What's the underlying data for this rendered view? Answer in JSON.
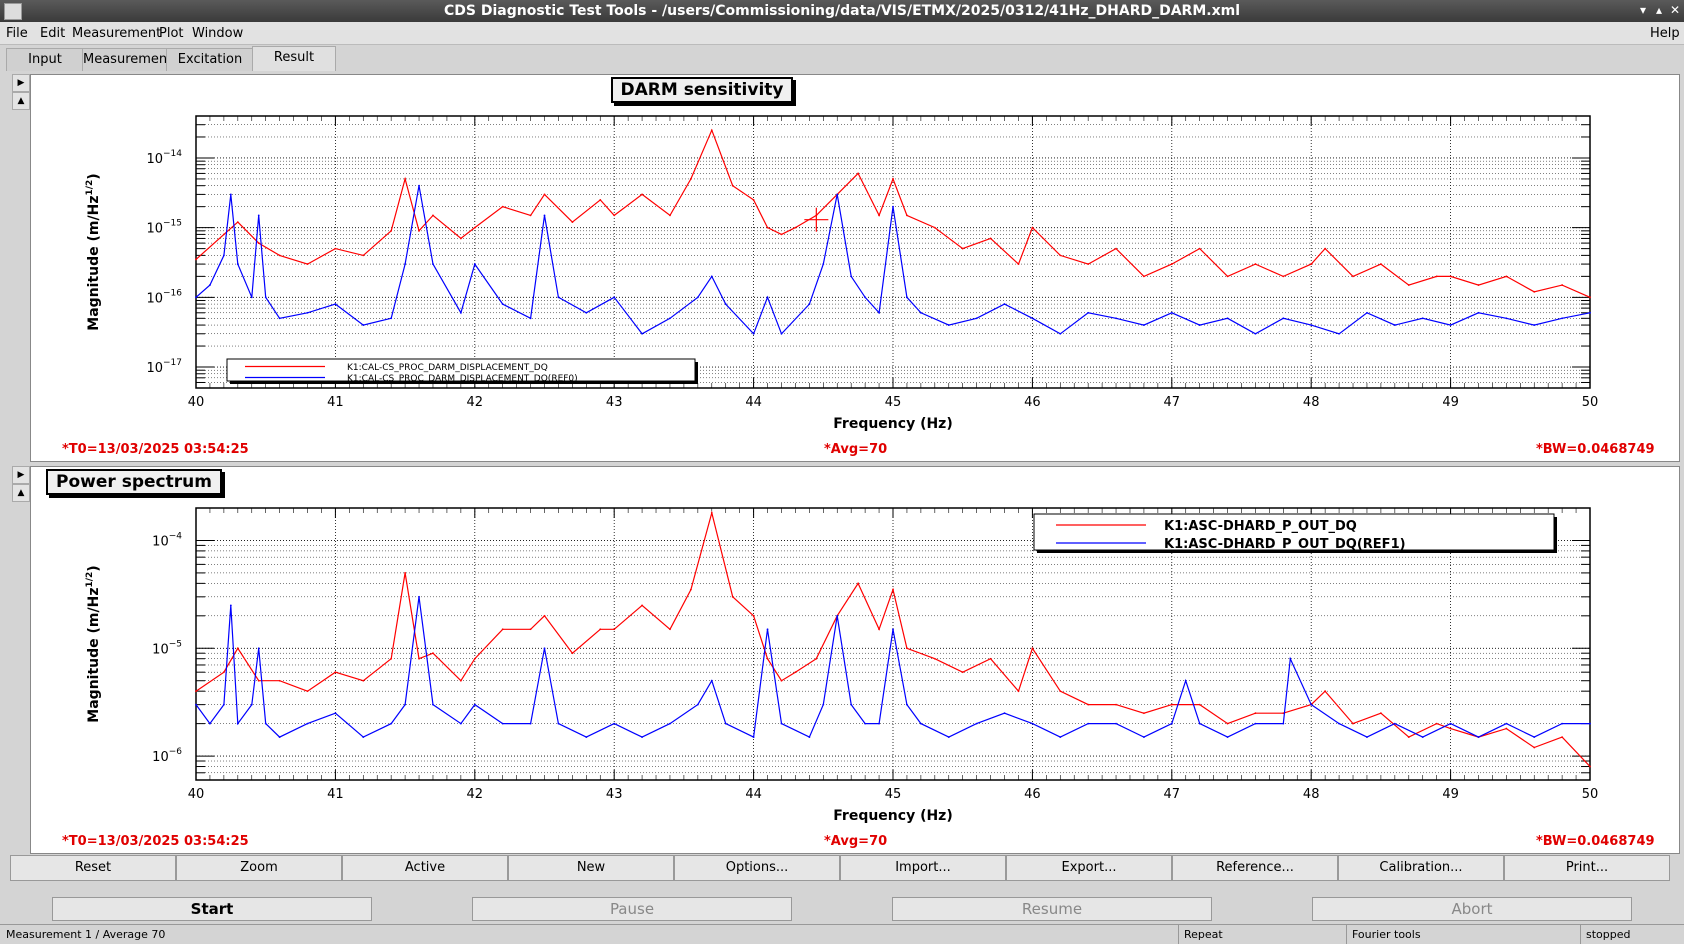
{
  "window": {
    "title": "CDS Diagnostic Test Tools - /users/Commissioning/data/VIS/ETMX/2025/0312/41Hz_DHARD_DARM.xml"
  },
  "menu": {
    "file": "File",
    "edit": "Edit",
    "measurement": "Measurement",
    "plot": "Plot",
    "window": "Window",
    "help": "Help"
  },
  "tabs": [
    "Input",
    "Measurement",
    "Excitation",
    "Result"
  ],
  "active_tab": "Result",
  "plots": [
    {
      "title": "DARM sensitivity",
      "xlabel": "Frequency (Hz)",
      "ylabel": "Magnitude (m/Hz",
      "ylabel_sup": "1/2",
      "ylabel_end": ")",
      "legend": [
        "K1:CAL-CS_PROC_DARM_DISPLACEMENT_DQ",
        "K1:CAL-CS_PROC_DARM_DISPLACEMENT_DQ(REF0)"
      ],
      "t0": "*T0=13/03/2025 03:54:25",
      "avg": "*Avg=70",
      "bw": "*BW=0.0468749"
    },
    {
      "title": "Power spectrum",
      "xlabel": "Frequency (Hz)",
      "ylabel": "Magnitude (m/Hz",
      "ylabel_sup": "1/2",
      "ylabel_end": ")",
      "legend": [
        "K1:ASC-DHARD_P_OUT_DQ",
        "K1:ASC-DHARD_P_OUT_DQ(REF1)"
      ],
      "t0": "*T0=13/03/2025 03:54:25",
      "avg": "*Avg=70",
      "bw": "*BW=0.0468749"
    }
  ],
  "chart_data": [
    {
      "type": "line",
      "title": "DARM sensitivity",
      "xlabel": "Frequency (Hz)",
      "ylabel": "Magnitude (m/Hz^1/2)",
      "xlim": [
        40,
        50
      ],
      "ylim": [
        5e-18,
        4e-14
      ],
      "yscale": "log",
      "grid": true,
      "legend_position": "bottom-left",
      "x_ticks": [
        "40",
        "41",
        "42",
        "43",
        "44",
        "45",
        "46",
        "47",
        "48",
        "49",
        "50"
      ],
      "y_ticks": [
        {
          "value": 1e-14,
          "label": "10",
          "exp": "-14"
        },
        {
          "value": 1e-15,
          "label": "10",
          "exp": "-15"
        },
        {
          "value": 1e-16,
          "label": "10",
          "exp": "-16"
        },
        {
          "value": 1e-17,
          "label": "10",
          "exp": "-17"
        }
      ],
      "series": [
        {
          "name": "K1:CAL-CS_PROC_DARM_DISPLACEMENT_DQ",
          "color": "#ff0000",
          "x": [
            40,
            40.2,
            40.3,
            40.45,
            40.6,
            40.8,
            41,
            41.2,
            41.4,
            41.5,
            41.6,
            41.7,
            41.9,
            42,
            42.2,
            42.4,
            42.5,
            42.7,
            42.9,
            43,
            43.2,
            43.4,
            43.55,
            43.7,
            43.85,
            44,
            44.1,
            44.2,
            44.3,
            44.45,
            44.6,
            44.75,
            44.9,
            45,
            45.1,
            45.3,
            45.5,
            45.7,
            45.9,
            46,
            46.2,
            46.4,
            46.6,
            46.8,
            47,
            47.2,
            47.4,
            47.6,
            47.8,
            48,
            48.1,
            48.3,
            48.5,
            48.7,
            48.9,
            49,
            49.2,
            49.4,
            49.6,
            49.8,
            50
          ],
          "y": [
            3.5e-16,
            8e-16,
            1.2e-15,
            6e-16,
            4e-16,
            3e-16,
            5e-16,
            4e-16,
            9e-16,
            5e-15,
            9e-16,
            1.5e-15,
            7e-16,
            1e-15,
            2e-15,
            1.5e-15,
            3e-15,
            1.2e-15,
            2.5e-15,
            1.5e-15,
            3e-15,
            1.5e-15,
            5e-15,
            2.5e-14,
            4e-15,
            2.5e-15,
            1e-15,
            8e-16,
            1e-15,
            1.5e-15,
            3e-15,
            6e-15,
            1.5e-15,
            5e-15,
            1.5e-15,
            1e-15,
            5e-16,
            7e-16,
            3e-16,
            1e-15,
            4e-16,
            3e-16,
            5e-16,
            2e-16,
            3e-16,
            5e-16,
            2e-16,
            3e-16,
            2e-16,
            3e-16,
            5e-16,
            2e-16,
            3e-16,
            1.5e-16,
            2e-16,
            2e-16,
            1.5e-16,
            2e-16,
            1.2e-16,
            1.5e-16,
            1e-16
          ]
        },
        {
          "name": "K1:CAL-CS_PROC_DARM_DISPLACEMENT_DQ(REF0)",
          "color": "#0000ff",
          "x": [
            40,
            40.1,
            40.2,
            40.25,
            40.3,
            40.4,
            40.45,
            40.5,
            40.6,
            40.8,
            41,
            41.2,
            41.4,
            41.5,
            41.6,
            41.7,
            41.9,
            42,
            42.2,
            42.4,
            42.5,
            42.6,
            42.8,
            43,
            43.2,
            43.4,
            43.6,
            43.7,
            43.8,
            44,
            44.1,
            44.2,
            44.4,
            44.5,
            44.6,
            44.7,
            44.8,
            44.9,
            45,
            45.1,
            45.2,
            45.4,
            45.6,
            45.8,
            46,
            46.2,
            46.4,
            46.6,
            46.8,
            47,
            47.2,
            47.4,
            47.6,
            47.8,
            48,
            48.2,
            48.4,
            48.6,
            48.8,
            49,
            49.2,
            49.4,
            49.6,
            49.8,
            50
          ],
          "y": [
            1e-16,
            1.5e-16,
            4e-16,
            3e-15,
            3e-16,
            1e-16,
            1.5e-15,
            1e-16,
            5e-17,
            6e-17,
            8e-17,
            4e-17,
            5e-17,
            3e-16,
            4e-15,
            3e-16,
            6e-17,
            3e-16,
            8e-17,
            5e-17,
            1.5e-15,
            1e-16,
            6e-17,
            1e-16,
            3e-17,
            5e-17,
            1e-16,
            2e-16,
            8e-17,
            3e-17,
            1e-16,
            3e-17,
            8e-17,
            3e-16,
            3e-15,
            2e-16,
            1e-16,
            6e-17,
            2e-15,
            1e-16,
            6e-17,
            4e-17,
            5e-17,
            8e-17,
            5e-17,
            3e-17,
            6e-17,
            5e-17,
            4e-17,
            6e-17,
            4e-17,
            5e-17,
            3e-17,
            5e-17,
            4e-17,
            3e-17,
            6e-17,
            4e-17,
            5e-17,
            4e-17,
            6e-17,
            5e-17,
            4e-17,
            5e-17,
            6e-17
          ]
        }
      ]
    },
    {
      "type": "line",
      "title": "Power spectrum",
      "xlabel": "Frequency (Hz)",
      "ylabel": "Magnitude (m/Hz^1/2)",
      "xlim": [
        40,
        50
      ],
      "ylim": [
        6e-07,
        0.0002
      ],
      "yscale": "log",
      "grid": true,
      "legend_position": "top-right",
      "x_ticks": [
        "40",
        "41",
        "42",
        "43",
        "44",
        "45",
        "46",
        "47",
        "48",
        "49",
        "50"
      ],
      "y_ticks": [
        {
          "value": 0.0001,
          "label": "10",
          "exp": "-4"
        },
        {
          "value": 1e-05,
          "label": "10",
          "exp": "-5"
        },
        {
          "value": 1e-06,
          "label": "10",
          "exp": "-6"
        }
      ],
      "series": [
        {
          "name": "K1:ASC-DHARD_P_OUT_DQ",
          "color": "#ff0000",
          "x": [
            40,
            40.2,
            40.3,
            40.45,
            40.6,
            40.8,
            41,
            41.2,
            41.4,
            41.5,
            41.6,
            41.7,
            41.9,
            42,
            42.2,
            42.4,
            42.5,
            42.7,
            42.9,
            43,
            43.2,
            43.4,
            43.55,
            43.7,
            43.85,
            44,
            44.1,
            44.2,
            44.3,
            44.45,
            44.6,
            44.75,
            44.9,
            45,
            45.1,
            45.3,
            45.5,
            45.7,
            45.9,
            46,
            46.2,
            46.4,
            46.6,
            46.8,
            47,
            47.2,
            47.4,
            47.6,
            47.8,
            48,
            48.1,
            48.3,
            48.5,
            48.7,
            48.9,
            49,
            49.2,
            49.4,
            49.6,
            49.8,
            50
          ],
          "y": [
            4e-06,
            6e-06,
            1e-05,
            5e-06,
            5e-06,
            4e-06,
            6e-06,
            5e-06,
            8e-06,
            5e-05,
            8e-06,
            9e-06,
            5e-06,
            8e-06,
            1.5e-05,
            1.5e-05,
            2e-05,
            9e-06,
            1.5e-05,
            1.5e-05,
            2.5e-05,
            1.5e-05,
            3.5e-05,
            0.00018,
            3e-05,
            2e-05,
            8e-06,
            5e-06,
            6e-06,
            8e-06,
            2e-05,
            4e-05,
            1.5e-05,
            3.5e-05,
            1e-05,
            8e-06,
            6e-06,
            8e-06,
            4e-06,
            1e-05,
            4e-06,
            3e-06,
            3e-06,
            2.5e-06,
            3e-06,
            3e-06,
            2e-06,
            2.5e-06,
            2.5e-06,
            3e-06,
            4e-06,
            2e-06,
            2.5e-06,
            1.5e-06,
            2e-06,
            1.8e-06,
            1.5e-06,
            1.8e-06,
            1.2e-06,
            1.5e-06,
            8e-07
          ]
        },
        {
          "name": "K1:ASC-DHARD_P_OUT_DQ(REF1)",
          "color": "#0000ff",
          "x": [
            40,
            40.1,
            40.2,
            40.25,
            40.3,
            40.4,
            40.45,
            40.5,
            40.6,
            40.8,
            41,
            41.2,
            41.4,
            41.5,
            41.6,
            41.7,
            41.9,
            42,
            42.2,
            42.4,
            42.5,
            42.6,
            42.8,
            43,
            43.2,
            43.4,
            43.6,
            43.7,
            43.8,
            44,
            44.1,
            44.2,
            44.4,
            44.5,
            44.6,
            44.7,
            44.8,
            44.9,
            45,
            45.1,
            45.2,
            45.4,
            45.6,
            45.8,
            46,
            46.2,
            46.4,
            46.6,
            46.8,
            47,
            47.1,
            47.2,
            47.4,
            47.6,
            47.8,
            47.85,
            48,
            48.2,
            48.4,
            48.6,
            48.8,
            49,
            49.2,
            49.4,
            49.6,
            49.8,
            50
          ],
          "y": [
            3e-06,
            2e-06,
            3e-06,
            2.5e-05,
            2e-06,
            3e-06,
            1e-05,
            2e-06,
            1.5e-06,
            2e-06,
            2.5e-06,
            1.5e-06,
            2e-06,
            3e-06,
            3e-05,
            3e-06,
            2e-06,
            3e-06,
            2e-06,
            2e-06,
            1e-05,
            2e-06,
            1.5e-06,
            2e-06,
            1.5e-06,
            2e-06,
            3e-06,
            5e-06,
            2e-06,
            1.5e-06,
            1.5e-05,
            2e-06,
            1.5e-06,
            3e-06,
            2e-05,
            3e-06,
            2e-06,
            2e-06,
            1.5e-05,
            3e-06,
            2e-06,
            1.5e-06,
            2e-06,
            2.5e-06,
            2e-06,
            1.5e-06,
            2e-06,
            2e-06,
            1.5e-06,
            2e-06,
            5e-06,
            2e-06,
            1.5e-06,
            2e-06,
            2e-06,
            8e-06,
            3e-06,
            2e-06,
            1.5e-06,
            2e-06,
            1.5e-06,
            2e-06,
            1.5e-06,
            2e-06,
            1.5e-06,
            2e-06,
            2e-06
          ]
        }
      ]
    }
  ],
  "buttons": [
    "Reset",
    "Zoom",
    "Active",
    "New",
    "Options...",
    "Import...",
    "Export...",
    "Reference...",
    "Calibration...",
    "Print..."
  ],
  "controls": {
    "start": "Start",
    "pause": "Pause",
    "resume": "Resume",
    "abort": "Abort"
  },
  "status": {
    "left": "Measurement 1 / Average 70",
    "repeat": "Repeat",
    "fourier": "Fourier tools",
    "state": "stopped"
  }
}
